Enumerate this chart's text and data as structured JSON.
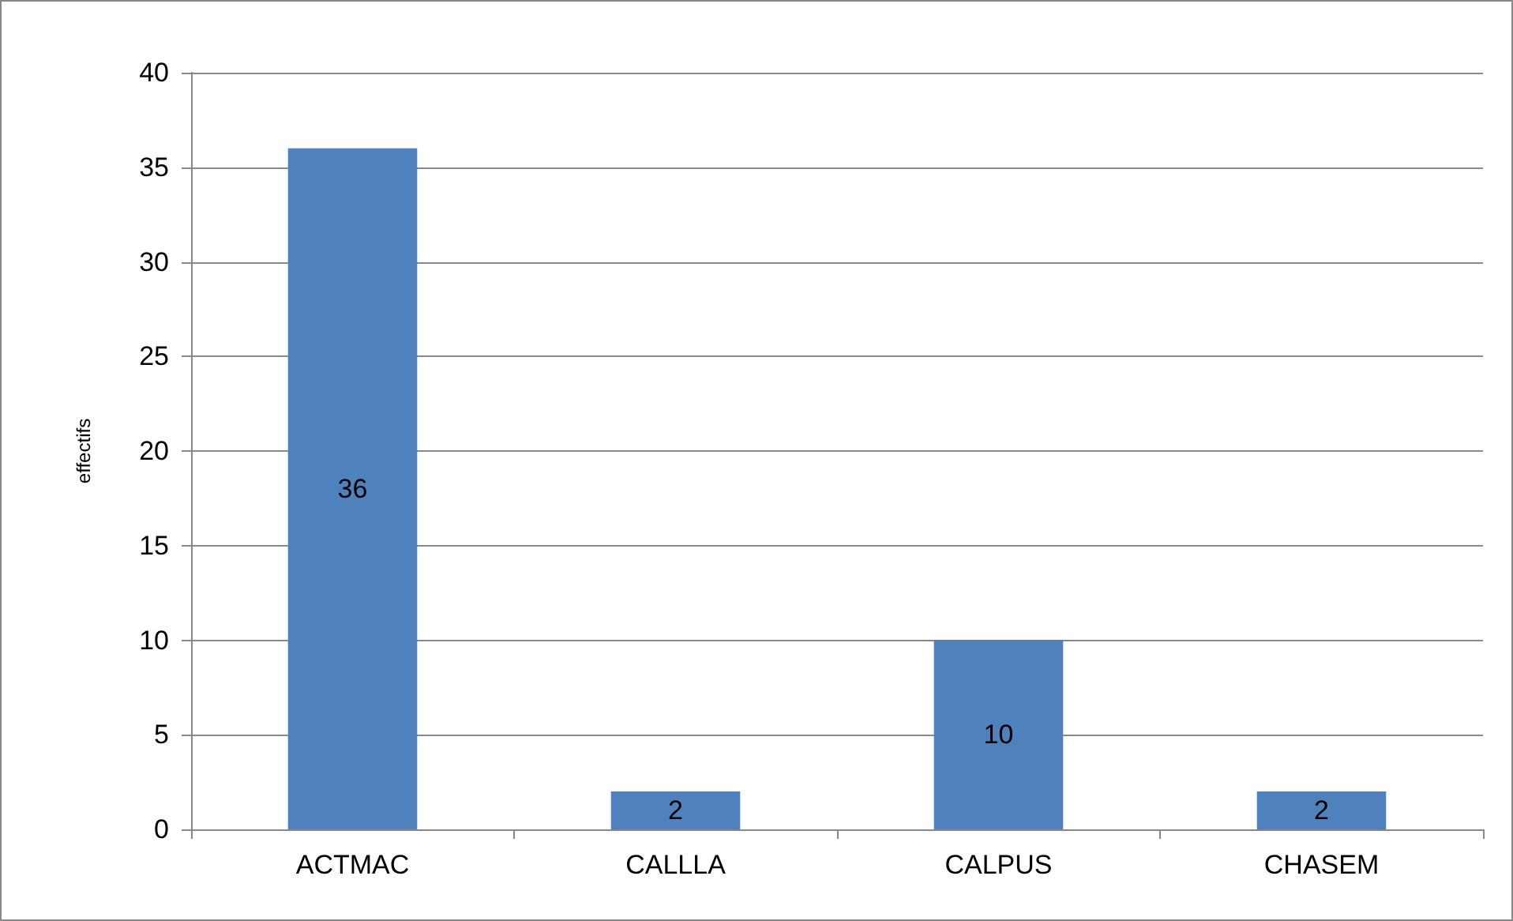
{
  "chart_data": {
    "type": "bar",
    "ylabel": "effectifs",
    "categories": [
      "ACTMAC",
      "CALLLA",
      "CALPUS",
      "CHASEM"
    ],
    "values": [
      36,
      2,
      10,
      2
    ],
    "color": "#4f81bd",
    "ylim": [
      0,
      40
    ],
    "yticks": [
      0,
      5,
      10,
      15,
      20,
      25,
      30,
      35,
      40
    ],
    "grid": "y",
    "data_labels": true
  }
}
